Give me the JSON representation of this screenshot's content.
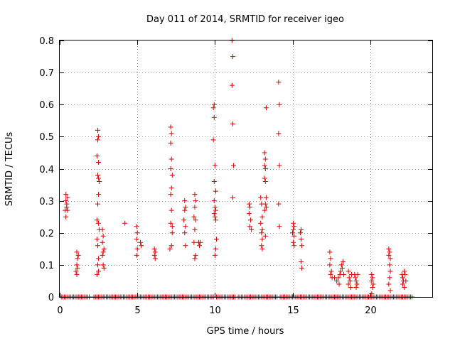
{
  "chart_data": {
    "type": "scatter",
    "title": "Day 011 of 2014, SRMTID for receiver igeo",
    "xlabel": "GPS time / hours",
    "ylabel": "SRMTID / TECUs",
    "xlim": [
      0,
      24
    ],
    "ylim": [
      0,
      0.8
    ],
    "xticks": [
      0,
      5,
      10,
      15,
      20
    ],
    "yticks": [
      0,
      0.1,
      0.2,
      0.3,
      0.4,
      0.5,
      0.6,
      0.7,
      0.8
    ],
    "xtick_labels": [
      "0",
      "5",
      "10",
      "15",
      "20"
    ],
    "ytick_labels": [
      "0",
      "0.1",
      "0.2",
      "0.3",
      "0.4",
      "0.5",
      "0.6",
      "0.7",
      "0.8"
    ],
    "grid": true,
    "marker": "+",
    "color": "#dd0000",
    "series": [
      {
        "name": "SRMTID",
        "points": [
          [
            0.4,
            0.32
          ],
          [
            0.4,
            0.3
          ],
          [
            0.45,
            0.28
          ],
          [
            0.5,
            0.27
          ],
          [
            0.4,
            0.25
          ],
          [
            0.5,
            0.31
          ],
          [
            0.45,
            0.29
          ],
          [
            0.35,
            0.27
          ],
          [
            1.1,
            0.14
          ],
          [
            1.15,
            0.12
          ],
          [
            1.1,
            0.1
          ],
          [
            1.05,
            0.08
          ],
          [
            1.1,
            0.07
          ],
          [
            1.2,
            0.13
          ],
          [
            1.15,
            0.09
          ],
          [
            2.45,
            0.52
          ],
          [
            2.5,
            0.5
          ],
          [
            2.45,
            0.49
          ],
          [
            2.4,
            0.44
          ],
          [
            2.5,
            0.42
          ],
          [
            2.45,
            0.38
          ],
          [
            2.5,
            0.37
          ],
          [
            2.55,
            0.36
          ],
          [
            2.5,
            0.32
          ],
          [
            2.45,
            0.29
          ],
          [
            2.4,
            0.24
          ],
          [
            2.5,
            0.23
          ],
          [
            2.4,
            0.18
          ],
          [
            2.45,
            0.16
          ],
          [
            2.5,
            0.12
          ],
          [
            2.45,
            0.1
          ],
          [
            2.5,
            0.08
          ],
          [
            2.4,
            0.07
          ],
          [
            2.55,
            0.21
          ],
          [
            2.75,
            0.21
          ],
          [
            2.8,
            0.19
          ],
          [
            2.75,
            0.17
          ],
          [
            2.85,
            0.15
          ],
          [
            2.8,
            0.14
          ],
          [
            2.75,
            0.13
          ],
          [
            2.8,
            0.1
          ],
          [
            2.85,
            0.09
          ],
          [
            4.2,
            0.23
          ],
          [
            4.95,
            0.22
          ],
          [
            5.0,
            0.2
          ],
          [
            4.95,
            0.18
          ],
          [
            5.0,
            0.15
          ],
          [
            4.95,
            0.13
          ],
          [
            5.2,
            0.17
          ],
          [
            5.25,
            0.16
          ],
          [
            6.1,
            0.15
          ],
          [
            6.15,
            0.14
          ],
          [
            6.1,
            0.13
          ],
          [
            6.15,
            0.12
          ],
          [
            7.15,
            0.53
          ],
          [
            7.2,
            0.51
          ],
          [
            7.15,
            0.48
          ],
          [
            7.2,
            0.43
          ],
          [
            7.15,
            0.4
          ],
          [
            7.25,
            0.38
          ],
          [
            7.2,
            0.34
          ],
          [
            7.15,
            0.32
          ],
          [
            7.2,
            0.27
          ],
          [
            7.15,
            0.23
          ],
          [
            7.25,
            0.22
          ],
          [
            7.2,
            0.16
          ],
          [
            7.1,
            0.15
          ],
          [
            7.25,
            0.2
          ],
          [
            8.05,
            0.3
          ],
          [
            8.1,
            0.28
          ],
          [
            8.05,
            0.27
          ],
          [
            8.0,
            0.24
          ],
          [
            8.1,
            0.22
          ],
          [
            8.05,
            0.2
          ],
          [
            8.1,
            0.16
          ],
          [
            8.7,
            0.32
          ],
          [
            8.75,
            0.3
          ],
          [
            8.7,
            0.28
          ],
          [
            8.65,
            0.25
          ],
          [
            8.75,
            0.24
          ],
          [
            8.7,
            0.21
          ],
          [
            8.65,
            0.17
          ],
          [
            8.75,
            0.13
          ],
          [
            8.7,
            0.12
          ],
          [
            8.95,
            0.17
          ],
          [
            9.0,
            0.16
          ],
          [
            9.05,
            0.17
          ],
          [
            9.95,
            0.6
          ],
          [
            9.9,
            0.59
          ],
          [
            9.95,
            0.56
          ],
          [
            9.9,
            0.49
          ],
          [
            10.0,
            0.41
          ],
          [
            9.95,
            0.36
          ],
          [
            10.05,
            0.33
          ],
          [
            9.95,
            0.3
          ],
          [
            10.0,
            0.28
          ],
          [
            10.05,
            0.27
          ],
          [
            9.95,
            0.26
          ],
          [
            10.0,
            0.25
          ],
          [
            10.05,
            0.24
          ],
          [
            10.1,
            0.18
          ],
          [
            10.05,
            0.15
          ],
          [
            10.0,
            0.13
          ],
          [
            11.1,
            0.8
          ],
          [
            11.15,
            0.75
          ],
          [
            11.1,
            0.66
          ],
          [
            11.15,
            0.54
          ],
          [
            11.2,
            0.41
          ],
          [
            11.15,
            0.31
          ],
          [
            12.2,
            0.29
          ],
          [
            12.25,
            0.28
          ],
          [
            12.2,
            0.26
          ],
          [
            12.3,
            0.24
          ],
          [
            12.25,
            0.22
          ],
          [
            12.35,
            0.21
          ],
          [
            12.95,
            0.31
          ],
          [
            13.0,
            0.29
          ],
          [
            13.05,
            0.25
          ],
          [
            12.95,
            0.23
          ],
          [
            13.05,
            0.21
          ],
          [
            13.0,
            0.2
          ],
          [
            13.05,
            0.18
          ],
          [
            13.0,
            0.16
          ],
          [
            13.05,
            0.15
          ],
          [
            13.2,
            0.45
          ],
          [
            13.25,
            0.43
          ],
          [
            13.2,
            0.41
          ],
          [
            13.25,
            0.4
          ],
          [
            13.2,
            0.37
          ],
          [
            13.25,
            0.36
          ],
          [
            13.3,
            0.31
          ],
          [
            13.25,
            0.29
          ],
          [
            13.2,
            0.27
          ],
          [
            13.3,
            0.28
          ],
          [
            13.25,
            0.19
          ],
          [
            13.3,
            0.59
          ],
          [
            14.1,
            0.67
          ],
          [
            14.15,
            0.6
          ],
          [
            14.1,
            0.51
          ],
          [
            14.15,
            0.41
          ],
          [
            14.1,
            0.29
          ],
          [
            14.15,
            0.22
          ],
          [
            15.05,
            0.23
          ],
          [
            15.1,
            0.22
          ],
          [
            15.05,
            0.21
          ],
          [
            15.0,
            0.2
          ],
          [
            15.1,
            0.19
          ],
          [
            15.05,
            0.17
          ],
          [
            15.1,
            0.16
          ],
          [
            15.55,
            0.21
          ],
          [
            15.5,
            0.2
          ],
          [
            15.55,
            0.18
          ],
          [
            15.6,
            0.16
          ],
          [
            15.55,
            0.11
          ],
          [
            15.6,
            0.09
          ],
          [
            17.4,
            0.14
          ],
          [
            17.45,
            0.12
          ],
          [
            17.4,
            0.1
          ],
          [
            17.5,
            0.08
          ],
          [
            17.45,
            0.07
          ],
          [
            17.55,
            0.06
          ],
          [
            17.7,
            0.06
          ],
          [
            17.85,
            0.05
          ],
          [
            17.95,
            0.06
          ],
          [
            18.05,
            0.07
          ],
          [
            18.1,
            0.08
          ],
          [
            18.15,
            0.1
          ],
          [
            18.2,
            0.09
          ],
          [
            18.25,
            0.11
          ],
          [
            18.0,
            0.04
          ],
          [
            18.3,
            0.07
          ],
          [
            18.6,
            0.08
          ],
          [
            18.65,
            0.06
          ],
          [
            18.7,
            0.05
          ],
          [
            18.6,
            0.04
          ],
          [
            18.75,
            0.03
          ],
          [
            18.8,
            0.07
          ],
          [
            19.0,
            0.07
          ],
          [
            19.05,
            0.06
          ],
          [
            19.1,
            0.05
          ],
          [
            19.15,
            0.04
          ],
          [
            19.2,
            0.07
          ],
          [
            19.1,
            0.03
          ],
          [
            20.1,
            0.07
          ],
          [
            20.15,
            0.06
          ],
          [
            20.1,
            0.05
          ],
          [
            20.2,
            0.04
          ],
          [
            20.15,
            0.03
          ],
          [
            20.1,
            0.01
          ],
          [
            21.2,
            0.15
          ],
          [
            21.25,
            0.14
          ],
          [
            21.2,
            0.13
          ],
          [
            21.3,
            0.12
          ],
          [
            21.25,
            0.1
          ],
          [
            21.3,
            0.08
          ],
          [
            21.25,
            0.06
          ],
          [
            21.2,
            0.04
          ],
          [
            21.3,
            0.02
          ],
          [
            22.05,
            0.07
          ],
          [
            22.1,
            0.06
          ],
          [
            22.15,
            0.05
          ],
          [
            22.2,
            0.08
          ],
          [
            22.25,
            0.07
          ],
          [
            22.1,
            0.04
          ],
          [
            22.2,
            0.03
          ],
          [
            22.3,
            0.05
          ]
        ],
        "zero_segments": [
          [
            0.1,
            1.9
          ],
          [
            2.2,
            3.7
          ],
          [
            3.8,
            9.9
          ],
          [
            10.1,
            11.3
          ],
          [
            11.5,
            14.0
          ],
          [
            14.2,
            22.7
          ]
        ]
      }
    ]
  }
}
